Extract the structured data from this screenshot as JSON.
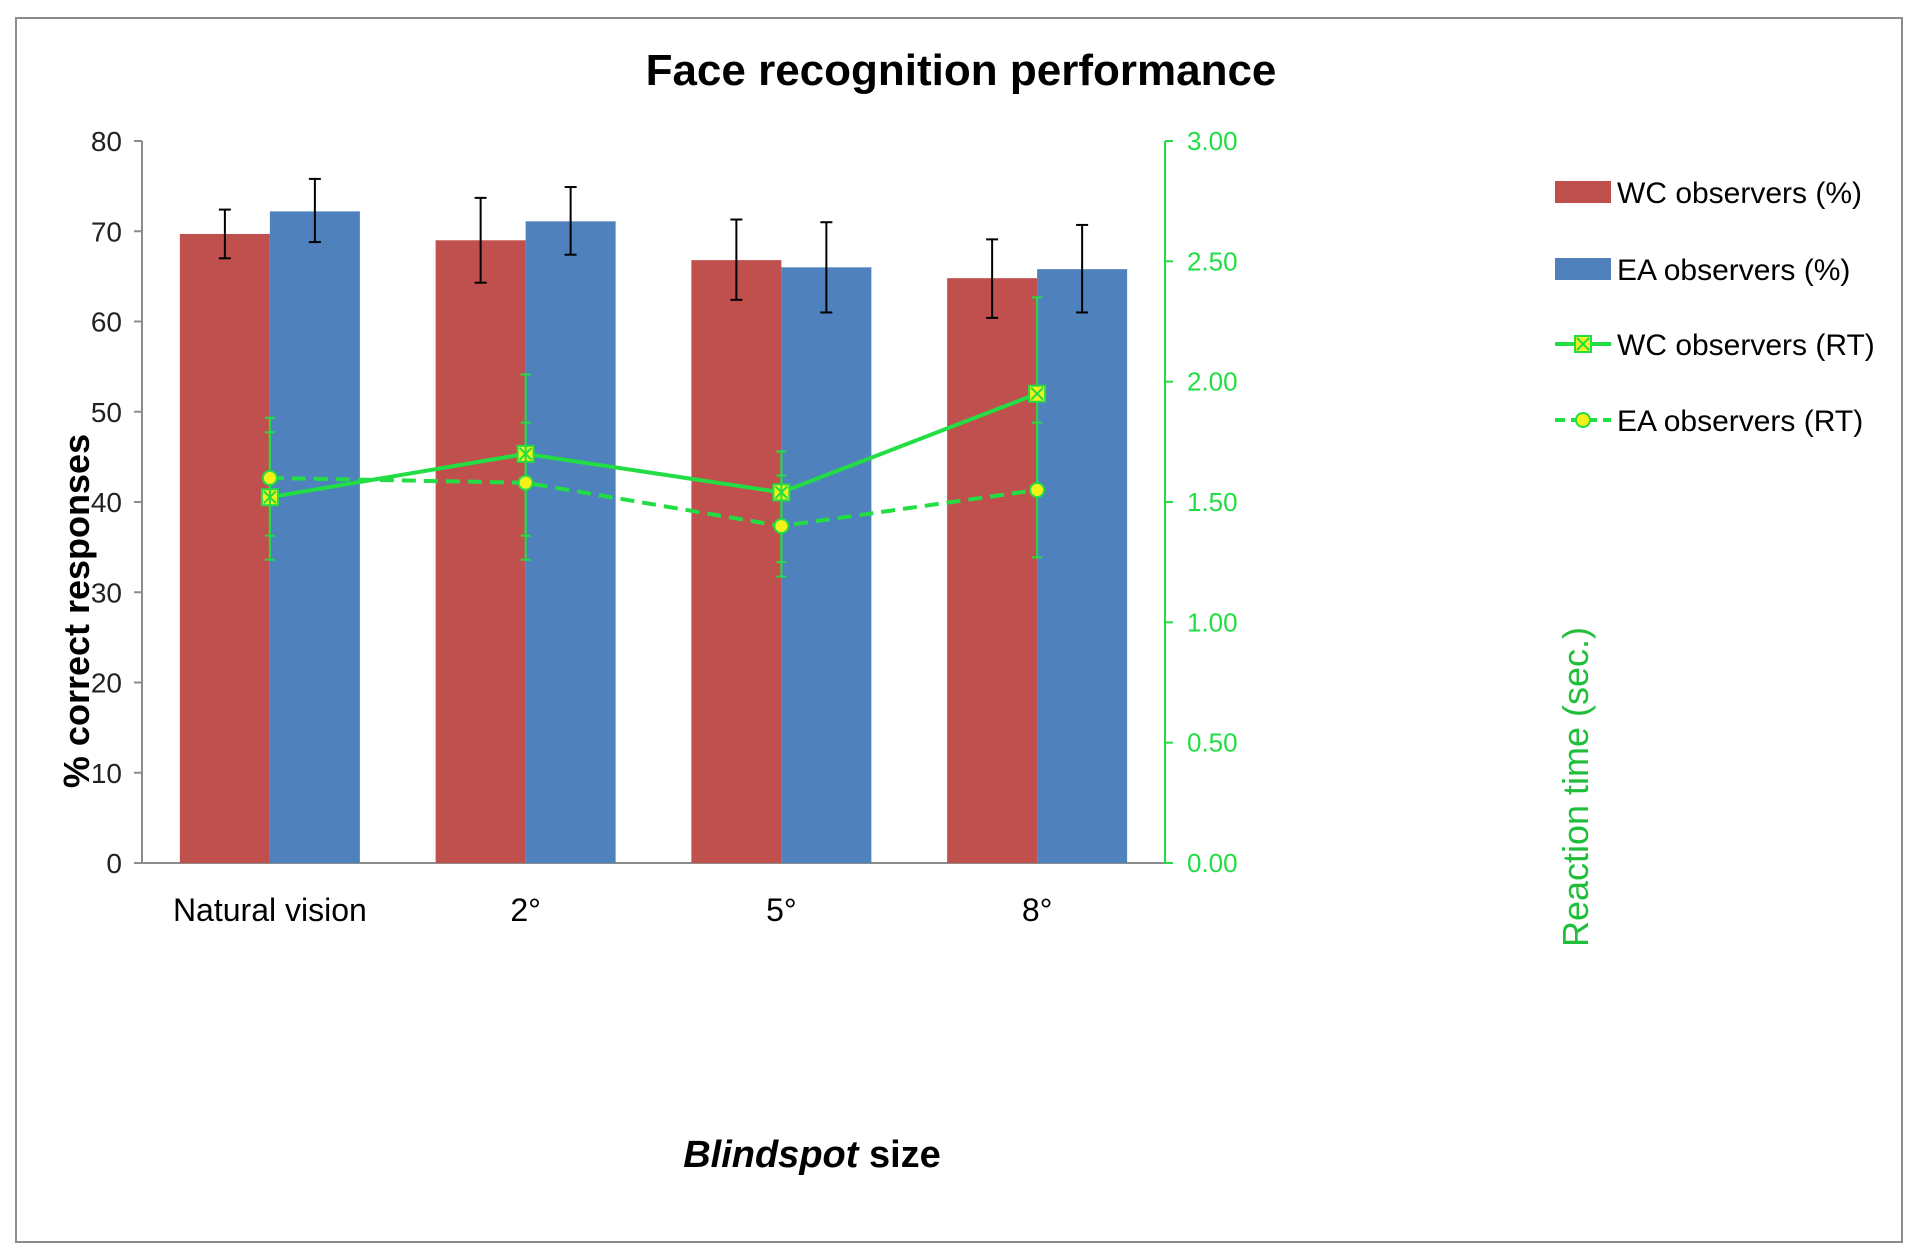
{
  "chart_data": {
    "type": "bar",
    "title": "Face recognition performance",
    "xlabel_emph": "Blindspot",
    "xlabel_rest": " size",
    "ylabel": "% correct responses",
    "y2label": "Reaction time (sec.)",
    "categories": [
      "Natural vision",
      "2°",
      "5°",
      "8°"
    ],
    "ylim": [
      0,
      80
    ],
    "yticks": [
      "0",
      "10",
      "20",
      "30",
      "40",
      "50",
      "60",
      "70",
      "80"
    ],
    "y2lim": [
      0,
      3
    ],
    "y2ticks": [
      "0.00",
      "0.50",
      "1.00",
      "1.50",
      "2.00",
      "2.50",
      "3.00"
    ],
    "bar_series": [
      {
        "name": "WC observers (%)",
        "color": "#c0504d",
        "values": [
          69.7,
          69.0,
          66.8,
          64.8
        ],
        "err_low": [
          67.0,
          64.3,
          62.4,
          60.4
        ],
        "err_high": [
          72.4,
          73.7,
          71.3,
          69.1
        ]
      },
      {
        "name": "EA observers (%)",
        "color": "#4f81bd",
        "values": [
          72.2,
          71.1,
          66.0,
          65.8
        ],
        "err_low": [
          68.8,
          67.4,
          61.0,
          61.0
        ],
        "err_high": [
          75.8,
          74.9,
          71.0,
          70.7
        ]
      }
    ],
    "line_series": [
      {
        "name": "WC observers (RT)",
        "color": "#22dd44",
        "dash": false,
        "marker": "x-square",
        "values": [
          1.52,
          1.7,
          1.54,
          1.95
        ],
        "err_low": [
          1.36,
          1.36,
          1.25,
          1.55
        ],
        "err_high": [
          1.79,
          2.03,
          1.71,
          2.35
        ]
      },
      {
        "name": "EA observers (RT)",
        "color": "#22dd44",
        "dash": true,
        "marker": "circle",
        "values": [
          1.6,
          1.58,
          1.4,
          1.55
        ],
        "err_low": [
          1.26,
          1.26,
          1.19,
          1.27
        ],
        "err_high": [
          1.85,
          1.83,
          1.61,
          1.83
        ]
      }
    ],
    "legend_position": "right"
  }
}
